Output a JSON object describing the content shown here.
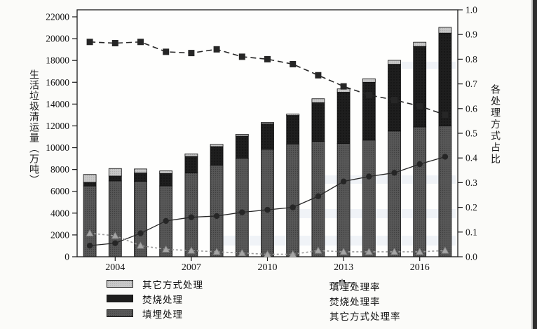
{
  "chart_data": {
    "type": "bar-line-combo",
    "categories": [
      2003,
      2004,
      2005,
      2006,
      2007,
      2008,
      2009,
      2010,
      2011,
      2012,
      2013,
      2014,
      2015,
      2016,
      2017
    ],
    "x_tick_labels": [
      "2004",
      "2007",
      "2010",
      "2013",
      "2016"
    ],
    "x_tick_indices": [
      1,
      4,
      7,
      10,
      13
    ],
    "left_axis": {
      "label": "生活垃圾清运量（万吨）",
      "min": 0,
      "max": 22000,
      "step": 2000,
      "unit": "万吨"
    },
    "right_axis": {
      "label": "各处理方式占比",
      "min": 0.0,
      "max": 1.0,
      "step": 0.1
    },
    "grid": false,
    "legend_position": "bottom",
    "bar_stack_order": "bottom-to-top",
    "bar_totals": [
      7545,
      8089,
      8051,
      7873,
      9438,
      10307,
      11232,
      12318,
      13090,
      14490,
      15394,
      16324,
      18013,
      19674,
      21034
    ],
    "bar_series": [
      {
        "name": "填埋处理",
        "unit": "万吨",
        "color": "#585858",
        "values": [
          6488,
          6956,
          6924,
          6496,
          7692,
          8400,
          9042,
          9855,
          10341,
          10578,
          10391,
          10693,
          11529,
          11903,
          11989
        ]
      },
      {
        "name": "焚烧处理",
        "unit": "万吨",
        "color": "#1e1e1e",
        "values": [
          340,
          445,
          765,
          1141,
          1510,
          1701,
          2022,
          2340,
          2618,
          3550,
          4695,
          5305,
          6124,
          7378,
          8519
        ]
      },
      {
        "name": "其它方式处理",
        "unit": "万吨",
        "color": "#c8c8c8",
        "values": [
          717,
          688,
          362,
          236,
          236,
          206,
          168,
          123,
          131,
          362,
          308,
          326,
          360,
          393,
          526
        ]
      }
    ],
    "line_series": [
      {
        "name": "填埋处理率",
        "color": "#262626",
        "marker": "square",
        "dash": "dashed",
        "values": [
          0.87,
          0.865,
          0.87,
          0.83,
          0.825,
          0.84,
          0.81,
          0.8,
          0.78,
          0.735,
          0.69,
          0.655,
          0.635,
          0.61,
          0.575
        ]
      },
      {
        "name": "焚烧处理率",
        "color": "#262626",
        "marker": "circle",
        "dash": "solid",
        "values": [
          0.045,
          0.055,
          0.095,
          0.145,
          0.16,
          0.165,
          0.18,
          0.19,
          0.2,
          0.245,
          0.305,
          0.325,
          0.34,
          0.375,
          0.405
        ]
      },
      {
        "name": "其它方式处理率",
        "color": "#9b9b9b",
        "marker": "triangle",
        "dash": "dashed",
        "values": [
          0.095,
          0.085,
          0.045,
          0.03,
          0.025,
          0.02,
          0.015,
          0.01,
          0.01,
          0.025,
          0.02,
          0.02,
          0.02,
          0.02,
          0.025
        ]
      }
    ]
  },
  "legend": {
    "bars": [
      {
        "label": "其它方式处理"
      },
      {
        "label": "焚烧处理"
      },
      {
        "label": "填埋处理"
      }
    ],
    "lines": [
      {
        "label": "填埋处理率"
      },
      {
        "label": "焚烧处理率"
      },
      {
        "label": "其它方式处理率"
      }
    ]
  }
}
